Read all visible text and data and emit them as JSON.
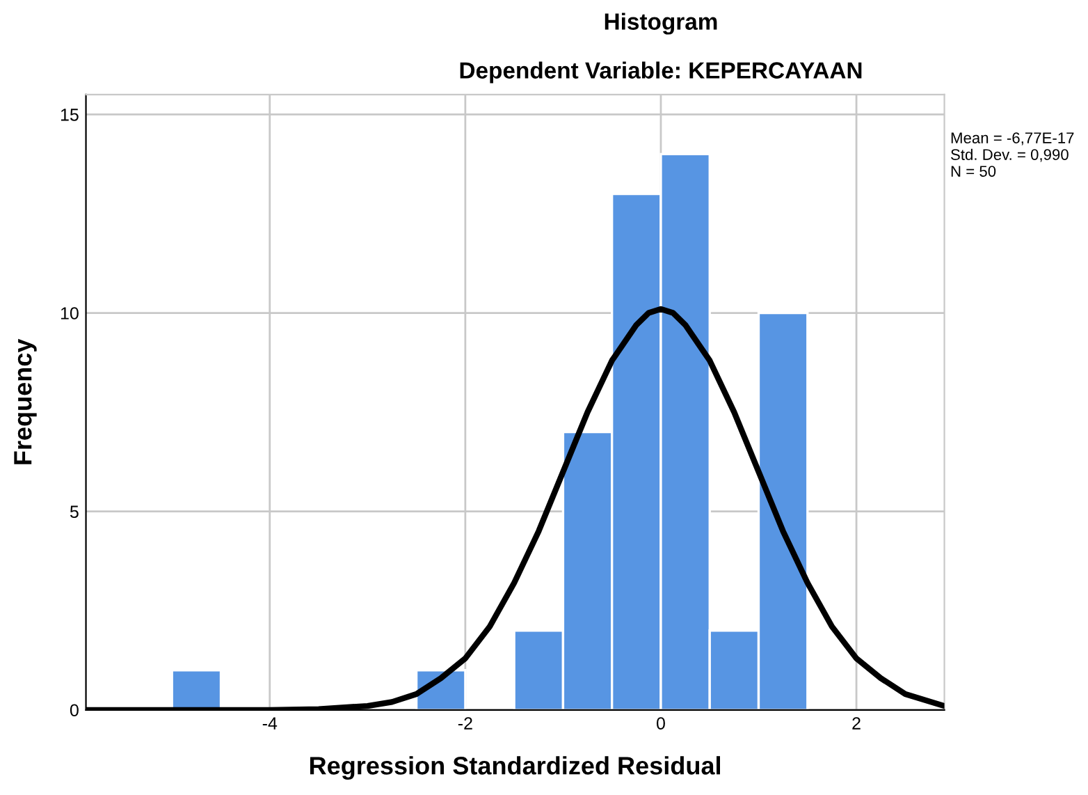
{
  "chart_data": {
    "type": "histogram",
    "title": "Histogram",
    "subtitle": "Dependent Variable: KEPERCAYAAN",
    "xlabel": "Regression Standardized Residual",
    "ylabel": "Frequency",
    "bins": [
      -5,
      -4.5,
      -4,
      -3.5,
      -3,
      -2.5,
      -2,
      -1.5,
      -1,
      -0.5,
      0,
      0.5,
      1,
      1.5
    ],
    "values": [
      1,
      0,
      0,
      0,
      0,
      1,
      0,
      2,
      7,
      13,
      14,
      2,
      10
    ],
    "color": "#5795e3",
    "series": [
      {
        "type": "line",
        "color": "#000000",
        "x": [
          -5.88,
          -4,
          -3.5,
          -3,
          -2.75,
          -2.5,
          -2.25,
          -2,
          -1.75,
          -1.5,
          -1.25,
          -1,
          -0.75,
          -0.5,
          -0.25,
          -0.125,
          0,
          0.125,
          0.25,
          0.5,
          0.75,
          1,
          1.25,
          1.5,
          1.75,
          2,
          2.25,
          2.5,
          2.9
        ],
        "values": [
          0,
          0,
          0.02,
          0.1,
          0.2,
          0.4,
          0.8,
          1.3,
          2.1,
          3.2,
          4.5,
          6.0,
          7.5,
          8.8,
          9.7,
          10.0,
          10.1,
          10.0,
          9.7,
          8.8,
          7.5,
          6.0,
          4.5,
          3.2,
          2.1,
          1.3,
          0.8,
          0.4,
          0.1
        ]
      }
    ],
    "xlim": [
      -5.88,
      2.9
    ],
    "ylim": [
      0,
      15.5
    ],
    "xticks": [
      -4,
      -2,
      0,
      2
    ],
    "yticks": [
      0,
      5,
      10,
      15
    ],
    "grid": true,
    "legend": false,
    "annotations": [
      "Mean = -6,77E-17",
      "Std. Dev. = 0,990",
      "N = 50"
    ]
  }
}
